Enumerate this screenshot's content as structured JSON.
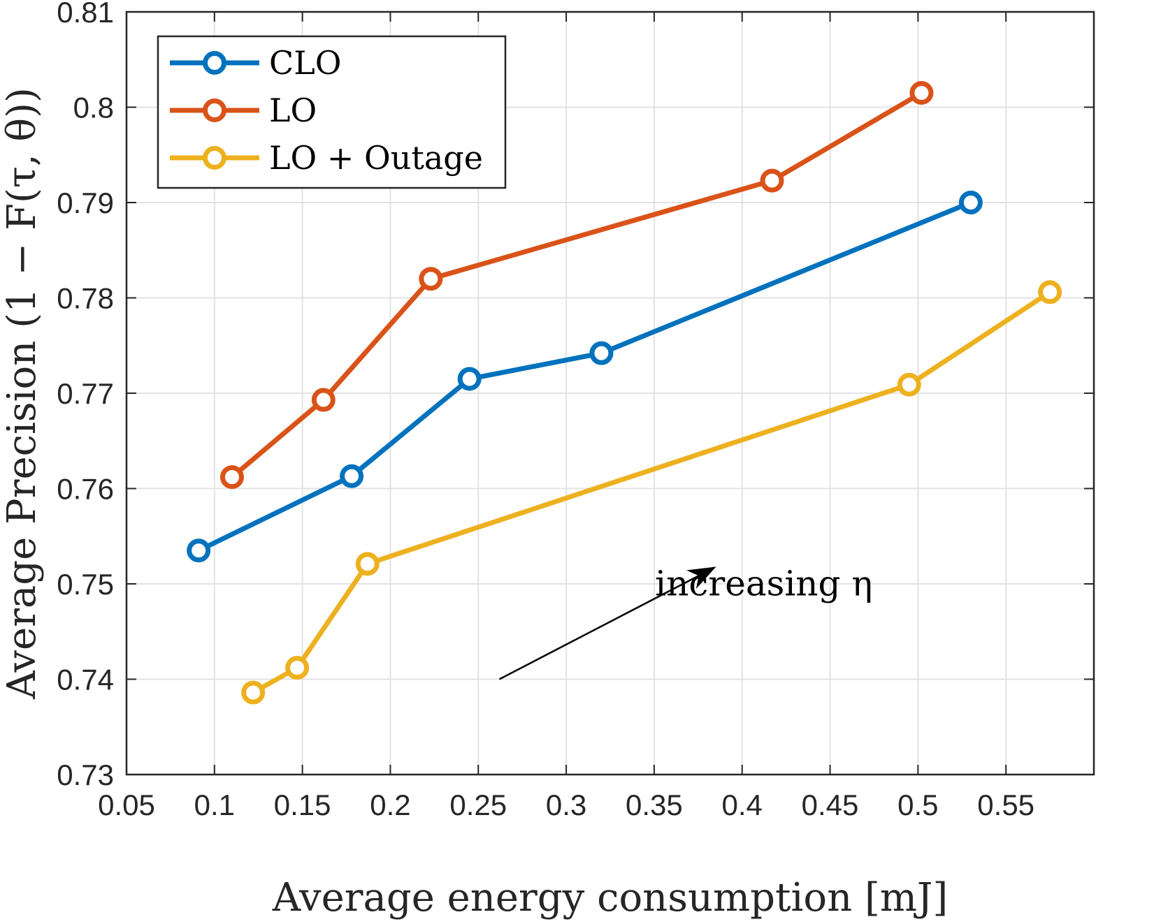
{
  "chart_data": {
    "type": "line",
    "xlabel": "Average energy consumption [mJ]",
    "ylabel": "Average Precision (1 − F(τ, θ))",
    "xlim": [
      0.05,
      0.6
    ],
    "ylim": [
      0.73,
      0.81
    ],
    "grid": true,
    "legend_position": "top-left",
    "x_ticks": [
      0.05,
      0.1,
      0.15,
      0.2,
      0.25,
      0.3,
      0.35,
      0.4,
      0.45,
      0.5,
      0.55
    ],
    "x_tick_labels": [
      "0.05",
      "0.1",
      "0.15",
      "0.2",
      "0.25",
      "0.3",
      "0.35",
      "0.4",
      "0.45",
      "0.5",
      "0.55"
    ],
    "y_ticks": [
      0.73,
      0.74,
      0.75,
      0.76,
      0.77,
      0.78,
      0.79,
      0.8,
      0.81
    ],
    "y_tick_labels": [
      "0.73",
      "0.74",
      "0.75",
      "0.76",
      "0.77",
      "0.78",
      "0.79",
      "0.8",
      "0.81"
    ],
    "series": [
      {
        "name": "CLO",
        "color": "#0072BD",
        "x": [
          0.091,
          0.178,
          0.245,
          0.32,
          0.53
        ],
        "y": [
          0.7535,
          0.7613,
          0.7715,
          0.7742,
          0.79
        ]
      },
      {
        "name": "LO",
        "color": "#D95319",
        "x": [
          0.11,
          0.162,
          0.223,
          0.417,
          0.502
        ],
        "y": [
          0.7612,
          0.7693,
          0.782,
          0.7923,
          0.8015
        ]
      },
      {
        "name": "LO + Outage",
        "color": "#EDB120",
        "x": [
          0.122,
          0.147,
          0.187,
          0.495,
          0.575
        ],
        "y": [
          0.7386,
          0.7412,
          0.7521,
          0.7709,
          0.7806
        ]
      }
    ],
    "annotations": [
      {
        "text": "increasing η",
        "arrow_from": [
          0.262,
          0.74
        ],
        "arrow_to": [
          0.3852,
          0.7518
        ],
        "text_anchor": [
          0.3505,
          0.7488
        ]
      }
    ]
  }
}
